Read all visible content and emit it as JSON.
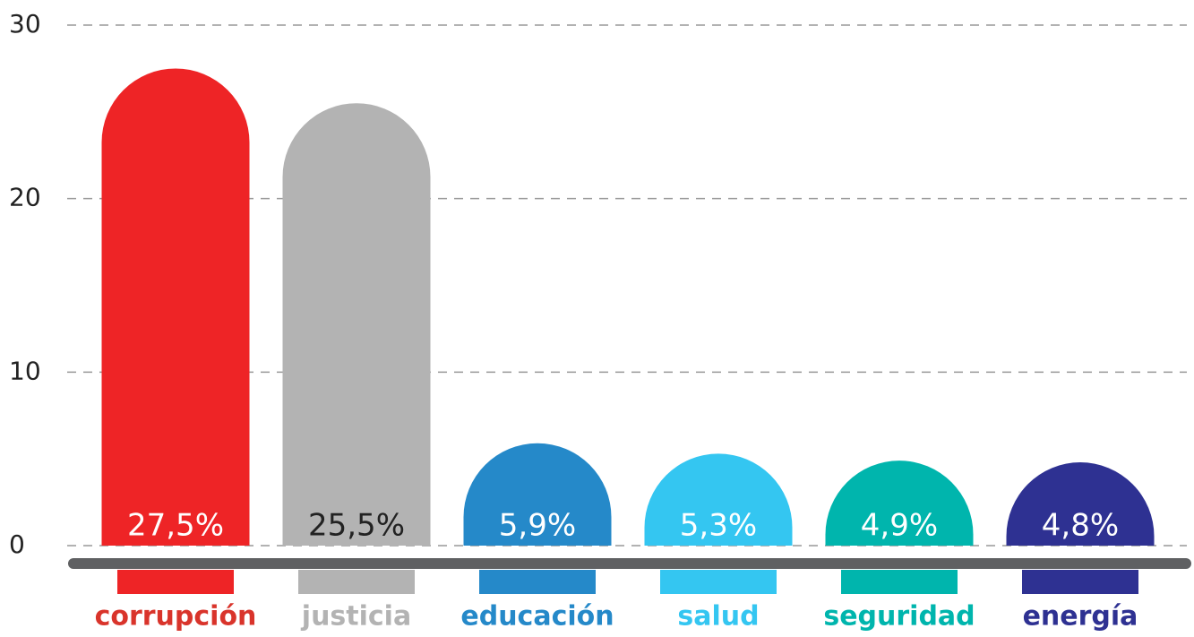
{
  "chart_data": {
    "type": "bar",
    "categories": [
      "corrupción",
      "justicia",
      "educación",
      "salud",
      "seguridad",
      "energía"
    ],
    "values": [
      27.5,
      25.5,
      5.9,
      5.3,
      4.9,
      4.8
    ],
    "value_labels": [
      "27,5%",
      "25,5%",
      "5,9%",
      "5,3%",
      "4,9%",
      "4,8%"
    ],
    "colors": [
      "#ee2426",
      "#b3b3b3",
      "#2589c9",
      "#34c6f1",
      "#00b5ad",
      "#2e3192"
    ],
    "label_colors": [
      "#ffffff",
      "#222222",
      "#ffffff",
      "#ffffff",
      "#ffffff",
      "#ffffff"
    ],
    "ylim": [
      0,
      30
    ],
    "yticks": [
      0,
      10,
      20,
      30
    ],
    "grid": true
  }
}
